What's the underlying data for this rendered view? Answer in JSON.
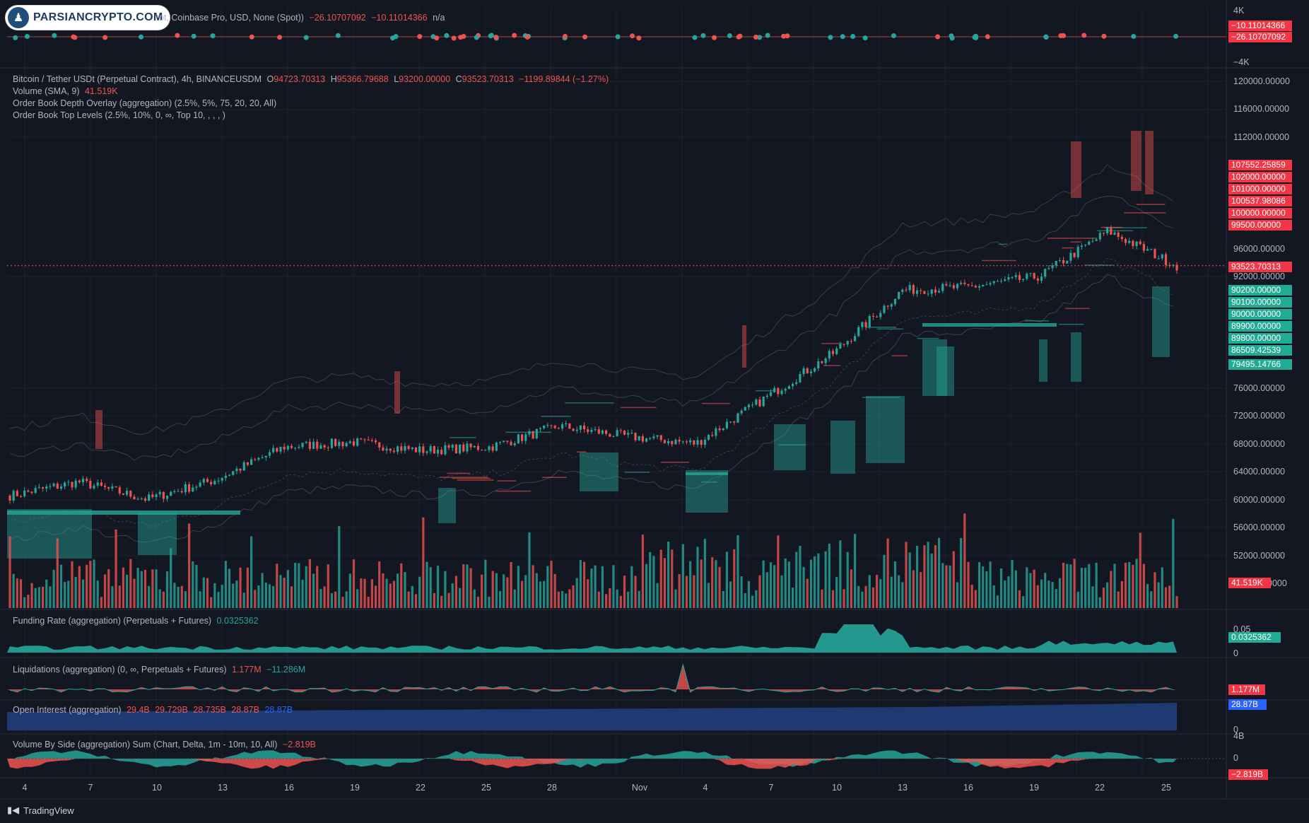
{
  "logo": {
    "text": "PARSIANCRYPTO.COM"
  },
  "top_pane": {
    "legend": [
      "ot, Coinbase Pro, USD, None (Spot))",
      "−26.10707092",
      "−10.11014366",
      "n/a"
    ],
    "axis": [
      "4K",
      "−4K"
    ],
    "tags": [
      "−10.11014366",
      "−26.10707092"
    ]
  },
  "main": {
    "symbol": "Bitcoin / Tether USDt (Perpetual Contract), 4h, BINANCEUSDM",
    "open_label": "O",
    "open": "94723.70313",
    "high_label": "H",
    "high": "95366.79688",
    "low_label": "L",
    "low": "93200.00000",
    "close_label": "C",
    "close": "93523.70313",
    "change": "−1199.89844 (−1.27%)",
    "volume_label": "Volume (SMA, 9)",
    "volume_value": "41.519K",
    "depth_overlay": "Order Book Depth Overlay (aggregation) (2.5%, 5%, 75, 20, 20, All)",
    "top_levels": "Order Book Top Levels (2.5%, 10%, 0, ∞, Top 10, , , , )",
    "price_axis": [
      "120000.00000",
      "116000.00000",
      "112000.00000",
      "96000.00000",
      "92000.00000",
      "76000.00000",
      "72000.00000",
      "68000.00000",
      "64000.00000",
      "60000.00000",
      "56000.00000",
      "52000.00000",
      "0000"
    ],
    "ask_tags": [
      "107552.25859",
      "102000.00000",
      "101000.00000",
      "100537.98086",
      "100000.00000",
      "99500.00000"
    ],
    "last_price_tag": "93523.70313",
    "bid_tags": [
      "90200.00000",
      "90100.00000",
      "90000.00000",
      "89900.00000",
      "89800.00000",
      "86509.42539",
      "79495.14766"
    ],
    "volume_tag": "41.519K"
  },
  "funding": {
    "label": "Funding Rate (aggregation) (Perpetuals + Futures)",
    "value": "0.0325362",
    "axis": [
      "0.05",
      "0"
    ],
    "tag": "0.0325362"
  },
  "liquidations": {
    "label": "Liquidations (aggregation) (0, ∞, Perpetuals + Futures)",
    "v1": "1.177M",
    "v2": "−11.286M",
    "tag": "1.177M"
  },
  "open_interest": {
    "label": "Open Interest (aggregation)",
    "values": [
      "29.4B",
      "29.729B",
      "28.735B",
      "28.87B",
      "28.87B"
    ],
    "tag": "28.87B",
    "axis": "0"
  },
  "volume_side": {
    "label": "Volume By Side (aggregation) Sum (Chart, Delta, 1m - 10m, 10, All)",
    "value": "−2.819B",
    "axis": [
      "4B",
      "0"
    ],
    "tag": "−2.819B"
  },
  "x_axis": [
    "4",
    "7",
    "10",
    "13",
    "16",
    "19",
    "22",
    "25",
    "28",
    "Nov",
    "4",
    "7",
    "10",
    "13",
    "16",
    "19",
    "22",
    "25"
  ],
  "footer": {
    "brand": "TradingView"
  },
  "colors": {
    "up": "#26a69a",
    "down": "#ef5350",
    "bg": "#131722",
    "grid": "#1e222d",
    "oi": "#1f3a73"
  },
  "chart_data": {
    "type": "line",
    "title": "Bitcoin / Tether USDt (Perpetual Contract), 4h, BINANCEUSDM",
    "x": [
      "4",
      "7",
      "10",
      "13",
      "16",
      "19",
      "22",
      "25",
      "28",
      "Nov",
      "4",
      "7",
      "10",
      "13",
      "16",
      "19",
      "22",
      "25"
    ],
    "series": [
      {
        "values": [
          60500,
          62500,
          60000,
          62800,
          67500,
          68200,
          67000,
          67500,
          70500,
          69000,
          68000,
          74500,
          81000,
          90000,
          90500,
          92000,
          98500,
          93524
        ]
      }
    ],
    "ylim": [
      48000,
      124000
    ]
  }
}
